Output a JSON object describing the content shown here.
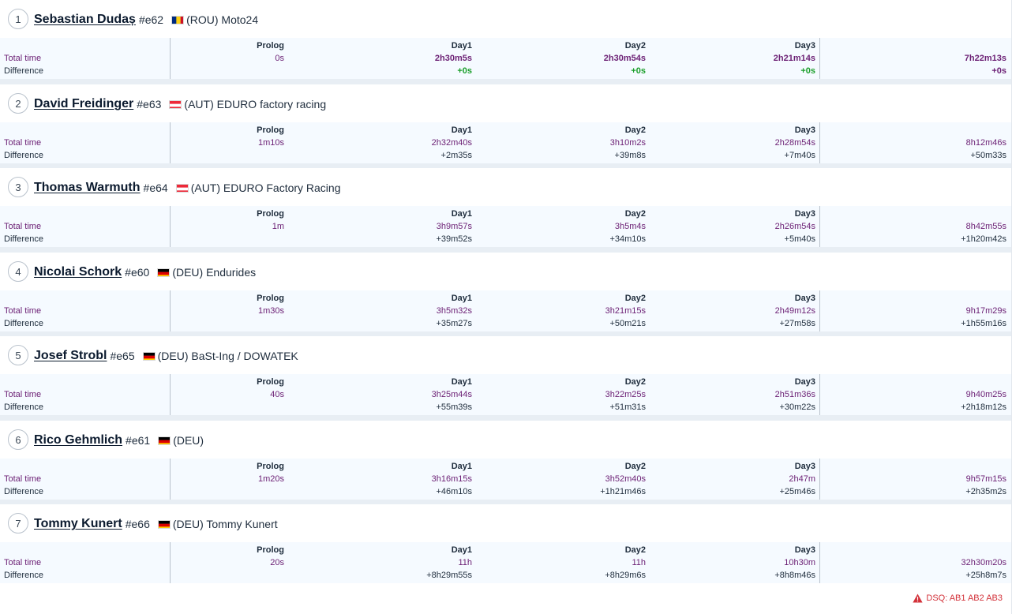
{
  "labels": {
    "total_time": "Total time",
    "difference": "Difference"
  },
  "stage_headers": [
    "Prolog",
    "Day1",
    "Day2",
    "Day3"
  ],
  "riders": [
    {
      "position": "1",
      "name": "Sebastian Dudaș",
      "bib": "#e62",
      "country_flag": "ROU",
      "team": "(ROU) Moto24",
      "total_times": [
        "0s",
        "2h30m5s",
        "2h30m54s",
        "2h21m14s",
        "7h22m13s"
      ],
      "differences": [
        "",
        "+0s",
        "+0s",
        "+0s",
        "+0s"
      ]
    },
    {
      "position": "2",
      "name": "David Freidinger",
      "bib": "#e63",
      "country_flag": "AUT",
      "team": "(AUT) EDURO factory racing",
      "total_times": [
        "1m10s",
        "2h32m40s",
        "3h10m2s",
        "2h28m54s",
        "8h12m46s"
      ],
      "differences": [
        "",
        "+2m35s",
        "+39m8s",
        "+7m40s",
        "+50m33s"
      ]
    },
    {
      "position": "3",
      "name": "Thomas Warmuth",
      "bib": "#e64",
      "country_flag": "AUT",
      "team": "(AUT) EDURO Factory Racing",
      "total_times": [
        "1m",
        "3h9m57s",
        "3h5m4s",
        "2h26m54s",
        "8h42m55s"
      ],
      "differences": [
        "",
        "+39m52s",
        "+34m10s",
        "+5m40s",
        "+1h20m42s"
      ]
    },
    {
      "position": "4",
      "name": "Nicolai Schork",
      "bib": "#e60",
      "country_flag": "DEU",
      "team": "(DEU) Endurides",
      "total_times": [
        "1m30s",
        "3h5m32s",
        "3h21m15s",
        "2h49m12s",
        "9h17m29s"
      ],
      "differences": [
        "",
        "+35m27s",
        "+50m21s",
        "+27m58s",
        "+1h55m16s"
      ]
    },
    {
      "position": "5",
      "name": "Josef Strobl",
      "bib": "#e65",
      "country_flag": "DEU",
      "team": "(DEU) BaSt-Ing / DOWATEK",
      "total_times": [
        "40s",
        "3h25m44s",
        "3h22m25s",
        "2h51m36s",
        "9h40m25s"
      ],
      "differences": [
        "",
        "+55m39s",
        "+51m31s",
        "+30m22s",
        "+2h18m12s"
      ]
    },
    {
      "position": "6",
      "name": "Rico Gehmlich",
      "bib": "#e61",
      "country_flag": "DEU",
      "team": "(DEU)",
      "total_times": [
        "1m20s",
        "3h16m15s",
        "3h52m40s",
        "2h47m",
        "9h57m15s"
      ],
      "differences": [
        "",
        "+46m10s",
        "+1h21m46s",
        "+25m46s",
        "+2h35m2s"
      ]
    },
    {
      "position": "7",
      "name": "Tommy Kunert",
      "bib": "#e66",
      "country_flag": "DEU",
      "team": "(DEU) Tommy Kunert",
      "total_times": [
        "20s",
        "11h",
        "11h",
        "10h30m",
        "32h30m20s"
      ],
      "differences": [
        "",
        "+8h29m55s",
        "+8h29m6s",
        "+8h8m46s",
        "+25h8m7s"
      ]
    }
  ],
  "dsq_note": "DSQ: AB1 AB2 AB3",
  "dsq_icon": "warning-icon",
  "colors": {
    "total_time": "#6b1f74",
    "leader_diff": "#1a9e2a",
    "dsq": "#d3323a",
    "table_bg": "#f5faff"
  }
}
